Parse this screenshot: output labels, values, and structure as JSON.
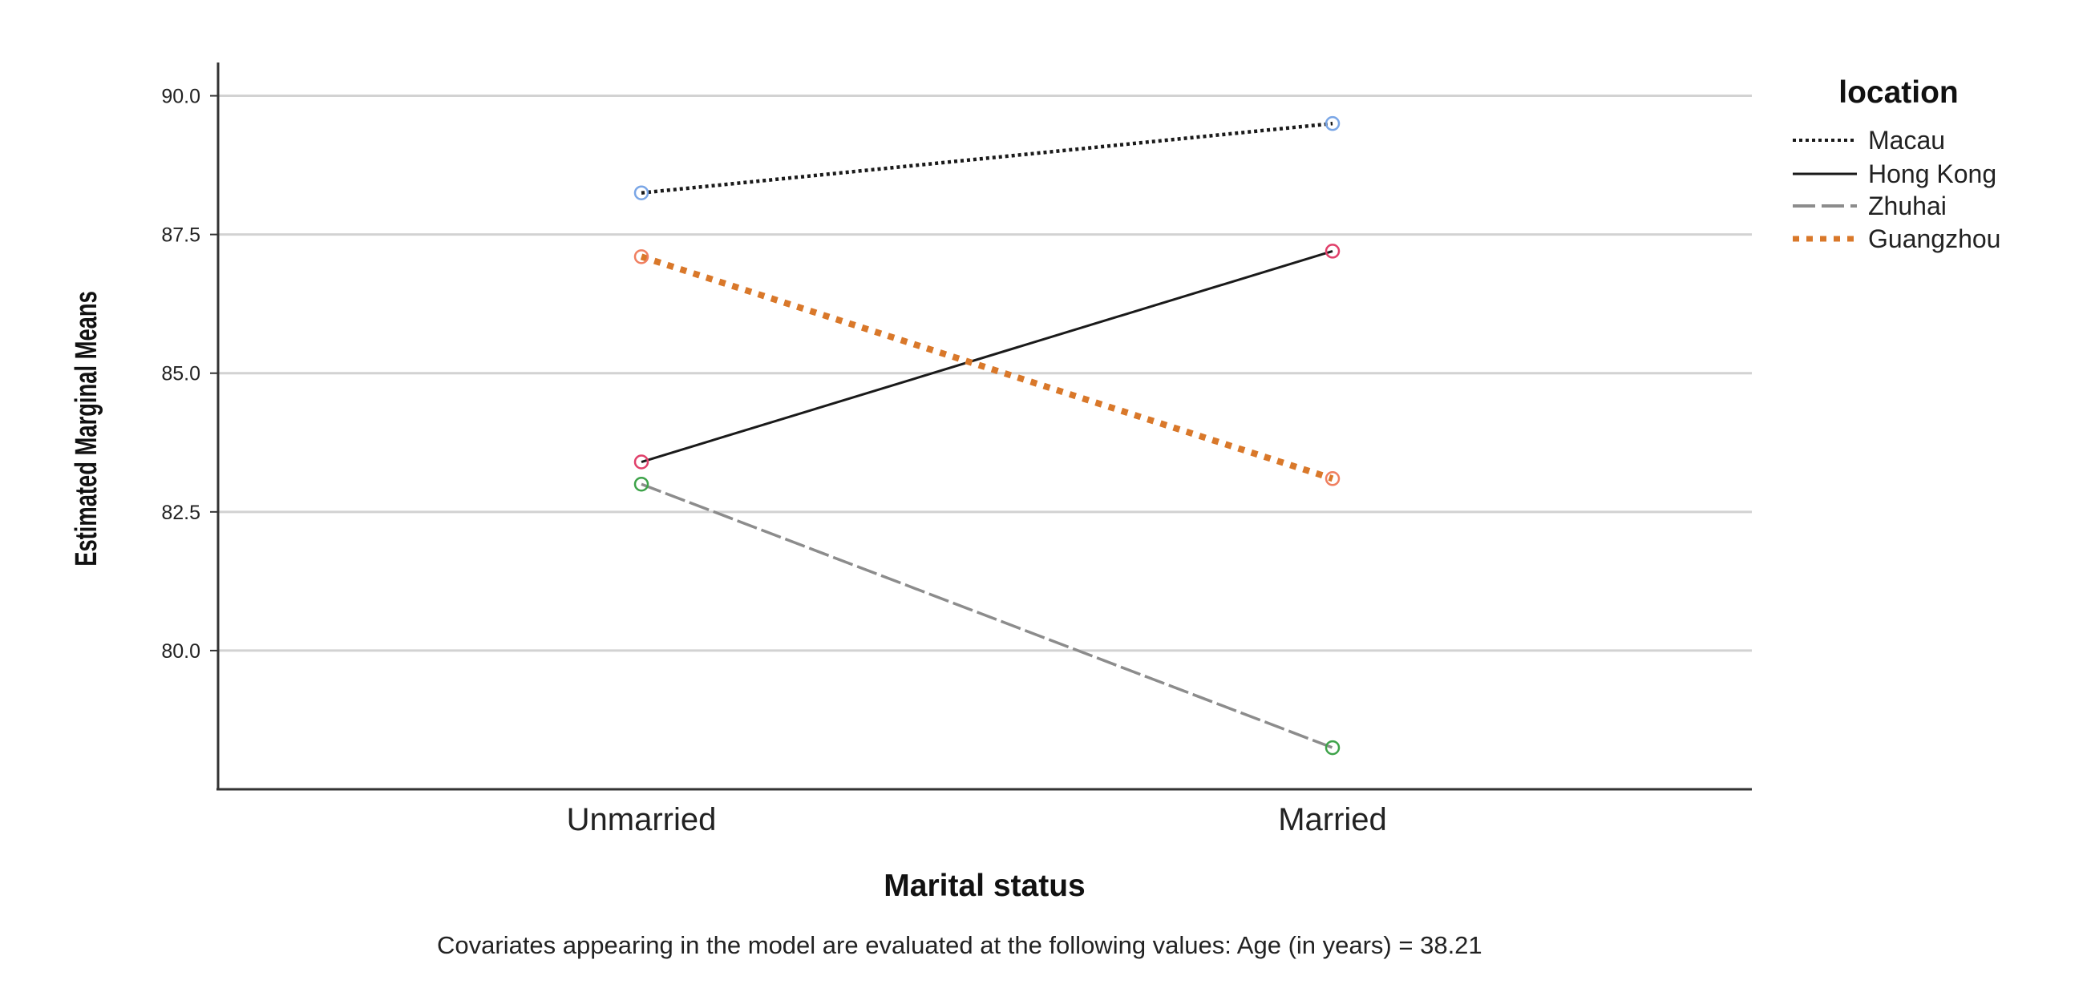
{
  "chart_data": {
    "type": "line",
    "categories": [
      "Unmarried",
      "Married"
    ],
    "series": [
      {
        "name": "Macau",
        "values": [
          88.25,
          89.5
        ],
        "color": "#1a1a1a",
        "marker_color": "#7aa6e6",
        "dash": "dotted"
      },
      {
        "name": "Hong Kong",
        "values": [
          83.4,
          87.2
        ],
        "color": "#1a1a1a",
        "marker_color": "#e0406a",
        "dash": "solid"
      },
      {
        "name": "Zhuhai",
        "values": [
          83.0,
          78.25
        ],
        "color": "#8c8c8c",
        "marker_color": "#3ea34a",
        "dash": "dashed"
      },
      {
        "name": "Guangzhou",
        "values": [
          87.1,
          83.1
        ],
        "color": "#d9782a",
        "marker_color": "#f07f60",
        "dash": "thick-dotted"
      }
    ],
    "xlabel": "Marital status",
    "ylabel": "Estimated Marginal Means",
    "y_ticks": [
      "80.0",
      "82.5",
      "85.0",
      "87.5",
      "90.0"
    ],
    "ylim": [
      77.5,
      90.6
    ],
    "grid": true,
    "legend_title": "location",
    "legend_position": "right",
    "footnote": "Covariates appearing in the model are evaluated at the following values: Age (in years) = 38.21"
  }
}
